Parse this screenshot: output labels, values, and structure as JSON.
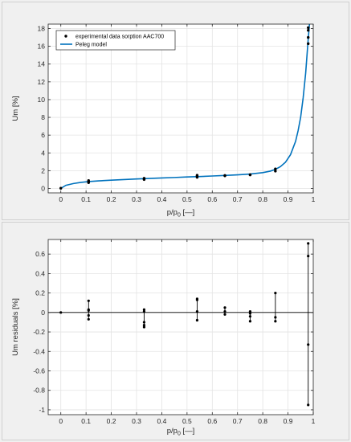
{
  "chart_data": [
    {
      "type": "line",
      "title": "",
      "xlabel_main": "p/p",
      "xlabel_sub": "0",
      "xlabel_suffix": " [—]",
      "ylabel": "Um [%]",
      "xlim": [
        -0.05,
        1.0
      ],
      "ylim": [
        -0.5,
        18.5
      ],
      "xticks": [
        0,
        0.1,
        0.2,
        0.3,
        0.4,
        0.5,
        0.6,
        0.7,
        0.8,
        0.9,
        1
      ],
      "xtick_labels": [
        "0",
        "0.1",
        "0.2",
        "0.3",
        "0.4",
        "0.5",
        "0.6",
        "0.7",
        "0.8",
        "0.9",
        "1"
      ],
      "yticks": [
        0,
        2,
        4,
        6,
        8,
        10,
        12,
        14,
        16,
        18
      ],
      "ytick_labels": [
        "0",
        "2",
        "4",
        "6",
        "8",
        "10",
        "12",
        "14",
        "16",
        "18"
      ],
      "grid": true,
      "legend_position": "top-left",
      "legend": [
        "experimental data sorption AAC700",
        "Peleg model"
      ],
      "series": [
        {
          "name": "experimental data sorption AAC700",
          "kind": "scatter",
          "color": "#000000",
          "x": [
            0,
            0.11,
            0.11,
            0.11,
            0.33,
            0.33,
            0.33,
            0.54,
            0.54,
            0.54,
            0.65,
            0.65,
            0.75,
            0.75,
            0.85,
            0.85,
            0.98,
            0.98,
            0.98,
            0.98
          ],
          "y": [
            0.02,
            0.65,
            0.75,
            0.88,
            1.0,
            1.05,
            1.15,
            1.25,
            1.38,
            1.48,
            1.42,
            1.46,
            1.52,
            1.55,
            1.95,
            2.2,
            16.3,
            17.0,
            17.8,
            18.1
          ]
        },
        {
          "name": "Peleg model",
          "kind": "line",
          "color": "#0072BD",
          "x": [
            0,
            0.02,
            0.05,
            0.08,
            0.11,
            0.15,
            0.2,
            0.25,
            0.3,
            0.35,
            0.4,
            0.45,
            0.5,
            0.55,
            0.6,
            0.65,
            0.7,
            0.75,
            0.8,
            0.83,
            0.85,
            0.87,
            0.89,
            0.91,
            0.93,
            0.94,
            0.95,
            0.96,
            0.97,
            0.98,
            0.985,
            0.99
          ],
          "y": [
            0.0,
            0.35,
            0.55,
            0.68,
            0.77,
            0.85,
            0.93,
            1.0,
            1.07,
            1.12,
            1.18,
            1.23,
            1.29,
            1.34,
            1.4,
            1.46,
            1.53,
            1.62,
            1.78,
            1.95,
            2.15,
            2.45,
            2.95,
            3.8,
            5.3,
            6.5,
            8.0,
            10.2,
            13.0,
            16.8,
            18.5,
            19.5
          ]
        }
      ]
    },
    {
      "type": "scatter",
      "title": "",
      "xlabel_main": "p/p",
      "xlabel_sub": "0",
      "xlabel_suffix": " [—]",
      "ylabel": "Um residuals [%]",
      "xlim": [
        -0.05,
        1.0
      ],
      "ylim": [
        -1.05,
        0.75
      ],
      "xticks": [
        0,
        0.1,
        0.2,
        0.3,
        0.4,
        0.5,
        0.6,
        0.7,
        0.8,
        0.9,
        1
      ],
      "xtick_labels": [
        "0",
        "0.1",
        "0.2",
        "0.3",
        "0.4",
        "0.5",
        "0.6",
        "0.7",
        "0.8",
        "0.9",
        "1"
      ],
      "yticks": [
        -1,
        -0.8,
        -0.6,
        -0.4,
        -0.2,
        0,
        0.2,
        0.4,
        0.6
      ],
      "ytick_labels": [
        "-1",
        "-0.8",
        "-0.6",
        "-0.4",
        "-0.2",
        "0",
        "0.2",
        "0.4",
        "0.6"
      ],
      "grid": true,
      "baseline": 0,
      "series": [
        {
          "name": "residuals",
          "color": "#000000",
          "x": [
            0,
            0.11,
            0.11,
            0.11,
            0.11,
            0.11,
            0.33,
            0.33,
            0.33,
            0.33,
            0.33,
            0.54,
            0.54,
            0.54,
            0.54,
            0.65,
            0.65,
            0.65,
            0.75,
            0.75,
            0.75,
            0.75,
            0.85,
            0.85,
            0.85,
            0.98,
            0.98,
            0.98,
            0.98
          ],
          "y": [
            0,
            0.12,
            0.03,
            0.02,
            -0.03,
            -0.07,
            0.03,
            0.01,
            -0.1,
            -0.13,
            -0.15,
            0.14,
            0.13,
            0.01,
            -0.08,
            0.05,
            0.01,
            -0.02,
            0.01,
            -0.01,
            -0.04,
            -0.09,
            0.2,
            -0.05,
            -0.09,
            0.71,
            0.58,
            -0.33,
            -0.95
          ]
        }
      ]
    }
  ]
}
